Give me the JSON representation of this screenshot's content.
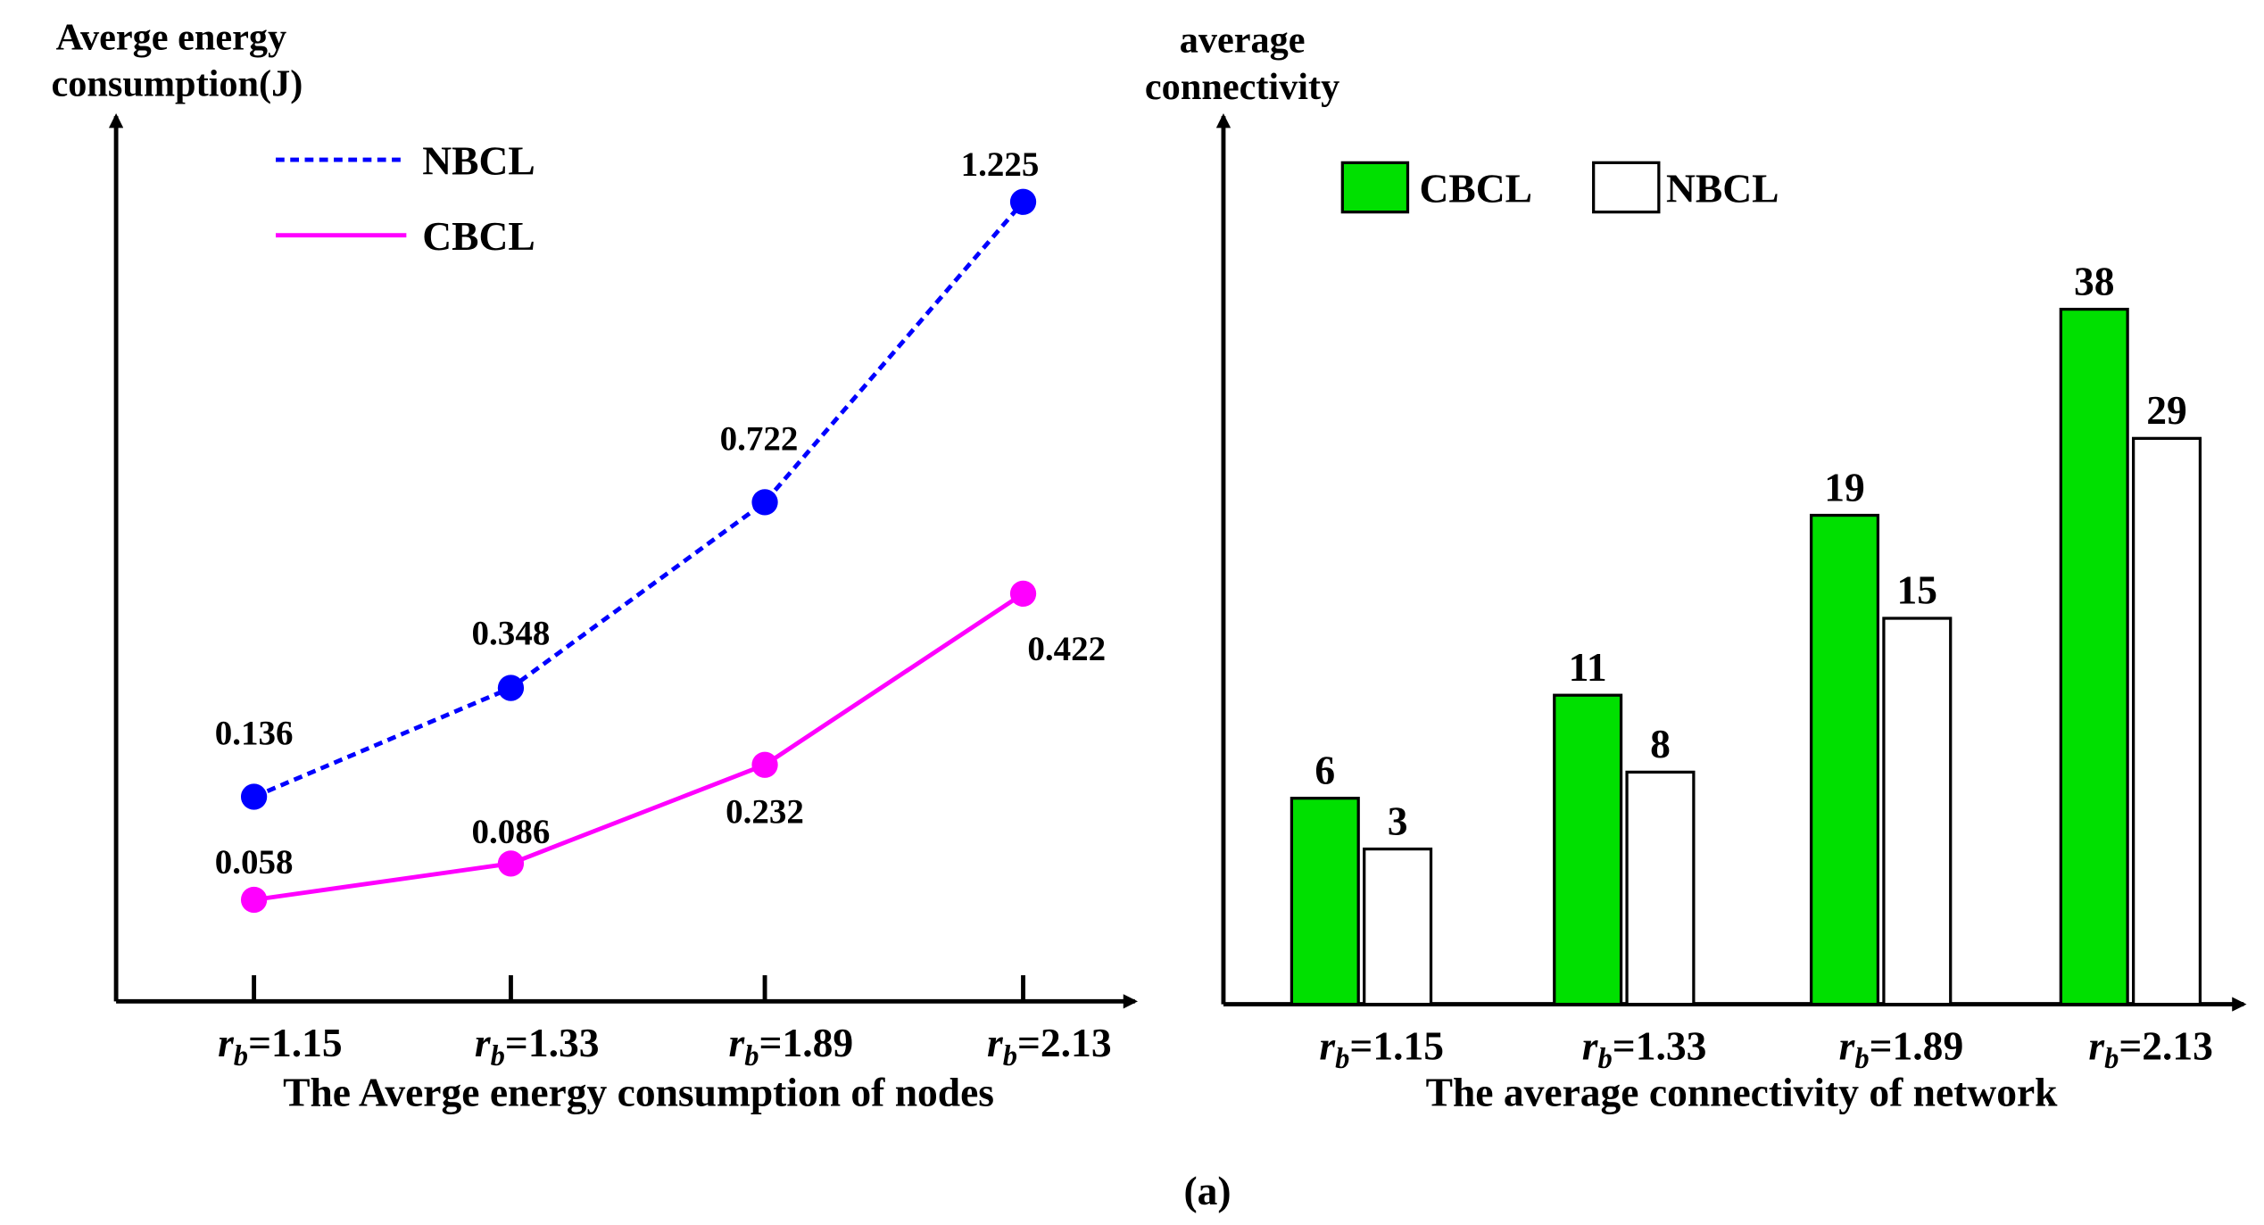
{
  "caption": "(a)",
  "colors": {
    "nbcl_line": "#0000ff",
    "cbcl_line": "#ff00ff",
    "cbcl_bar": "#00e000",
    "nbcl_bar": "#ffffff",
    "axis": "#000000"
  },
  "chart_data": [
    {
      "type": "line",
      "title": "The Averge energy consumption of nodes",
      "ylabel_lines": [
        "Averge energy",
        "consumption(J)"
      ],
      "xlabel": "The Averge energy consumption of nodes",
      "categories": [
        "1.15",
        "1.33",
        "1.89",
        "2.13"
      ],
      "category_prefix": "r",
      "category_subscript": "b",
      "legend_position": "top-left",
      "series": [
        {
          "name": "NBCL",
          "style": "dashed",
          "values": [
            0.136,
            0.348,
            0.722,
            1.225
          ],
          "labels": [
            "0.136",
            "0.348",
            "0.722",
            "1.225"
          ]
        },
        {
          "name": "CBCL",
          "style": "solid",
          "values": [
            0.058,
            0.086,
            0.232,
            0.422
          ],
          "labels": [
            "0.058",
            "0.086",
            "0.232",
            "0.422"
          ]
        }
      ]
    },
    {
      "type": "bar",
      "title": "The average connectivity of network",
      "ylabel_lines": [
        "average",
        "connectivity"
      ],
      "xlabel": "The average connectivity of network",
      "categories": [
        "1.15",
        "1.33",
        "1.89",
        "2.13"
      ],
      "category_prefix": "r",
      "category_subscript": "b",
      "legend_position": "top-left",
      "series": [
        {
          "name": "CBCL",
          "values": [
            6,
            11,
            19,
            38
          ],
          "labels": [
            "6",
            "11",
            "19",
            "38"
          ]
        },
        {
          "name": "NBCL",
          "values": [
            3,
            8,
            15,
            29
          ],
          "labels": [
            "3",
            "8",
            "15",
            "29"
          ]
        }
      ]
    }
  ]
}
